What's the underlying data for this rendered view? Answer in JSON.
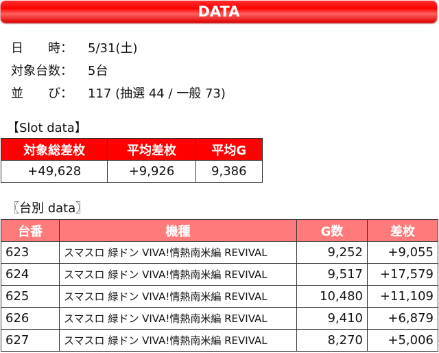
{
  "title": "DATA",
  "info": [
    {
      "label": "日　　時：",
      "value": "5/31(土)"
    },
    {
      "label": "対象台数：",
      "value": "5台"
    },
    {
      "label": "並　　び：",
      "value": "117 (抽選 44 / 一般 73)"
    }
  ],
  "slot": {
    "heading": "【Slot data】",
    "headers": [
      "対象総差枚",
      "平均差枚",
      "平均G"
    ],
    "values": [
      "+49,628",
      "+9,926",
      "9,386"
    ]
  },
  "unit": {
    "heading": "〖台別 data〗",
    "headers": [
      "台番",
      "機種",
      "G数",
      "差枚"
    ],
    "rows": [
      [
        "623",
        "スマスロ 緑ドン VIVA!情熱南米編 REVIVAL",
        "9,252",
        "+9,055"
      ],
      [
        "624",
        "スマスロ 緑ドン VIVA!情熱南米編 REVIVAL",
        "9,517",
        "+17,579"
      ],
      [
        "625",
        "スマスロ 緑ドン VIVA!情熱南米編 REVIVAL",
        "10,480",
        "+11,109"
      ],
      [
        "626",
        "スマスロ 緑ドン VIVA!情熱南米編 REVIVAL",
        "9,410",
        "+6,879"
      ],
      [
        "627",
        "スマスロ 緑ドン VIVA!情熱南米編 REVIVAL",
        "8,270",
        "+5,006"
      ]
    ]
  }
}
